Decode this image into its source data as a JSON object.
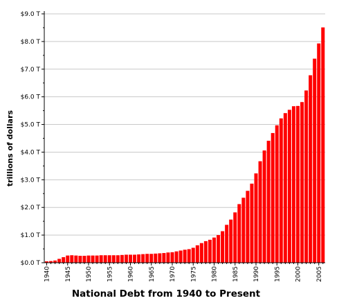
{
  "chart_data": {
    "type": "bar",
    "title": "National Debt from 1940 to Present",
    "ylabel": "trillions of dollars",
    "xlabel": "",
    "ylim": [
      0,
      9
    ],
    "grid": true,
    "bar_color": "#ff0000",
    "y_tick_labels": [
      "$0.0 T",
      "$1.0 T",
      "$2.0 T",
      "$3.0 T",
      "$4.0 T",
      "$5.0 T",
      "$6.0 T",
      "$7.0 T",
      "$8.0 T",
      "$9.0 T"
    ],
    "y_tick_values": [
      0,
      1,
      2,
      3,
      4,
      5,
      6,
      7,
      8,
      9
    ],
    "x_tick_labels": [
      "1940",
      "1945",
      "1950",
      "1955",
      "1960",
      "1965",
      "1970",
      "1975",
      "1980",
      "1985",
      "1990",
      "1995",
      "2000",
      "2005"
    ],
    "categories": [
      1940,
      1941,
      1942,
      1943,
      1944,
      1945,
      1946,
      1947,
      1948,
      1949,
      1950,
      1951,
      1952,
      1953,
      1954,
      1955,
      1956,
      1957,
      1958,
      1959,
      1960,
      1961,
      1962,
      1963,
      1964,
      1965,
      1966,
      1967,
      1968,
      1969,
      1970,
      1971,
      1972,
      1973,
      1974,
      1975,
      1976,
      1977,
      1978,
      1979,
      1980,
      1981,
      1982,
      1983,
      1984,
      1985,
      1986,
      1987,
      1988,
      1989,
      1990,
      1991,
      1992,
      1993,
      1994,
      1995,
      1996,
      1997,
      1998,
      1999,
      2000,
      2001,
      2002,
      2003,
      2004,
      2005,
      2006
    ],
    "values": [
      0.05,
      0.06,
      0.08,
      0.14,
      0.2,
      0.26,
      0.27,
      0.26,
      0.25,
      0.25,
      0.26,
      0.26,
      0.26,
      0.27,
      0.27,
      0.27,
      0.27,
      0.27,
      0.28,
      0.29,
      0.29,
      0.29,
      0.3,
      0.31,
      0.32,
      0.32,
      0.33,
      0.34,
      0.35,
      0.37,
      0.38,
      0.41,
      0.44,
      0.47,
      0.49,
      0.54,
      0.63,
      0.71,
      0.78,
      0.83,
      0.91,
      1.0,
      1.14,
      1.37,
      1.56,
      1.82,
      2.12,
      2.35,
      2.6,
      2.86,
      3.23,
      3.67,
      4.06,
      4.41,
      4.69,
      4.97,
      5.22,
      5.41,
      5.53,
      5.66,
      5.67,
      5.81,
      6.23,
      6.78,
      7.38,
      7.93,
      8.51
    ]
  }
}
